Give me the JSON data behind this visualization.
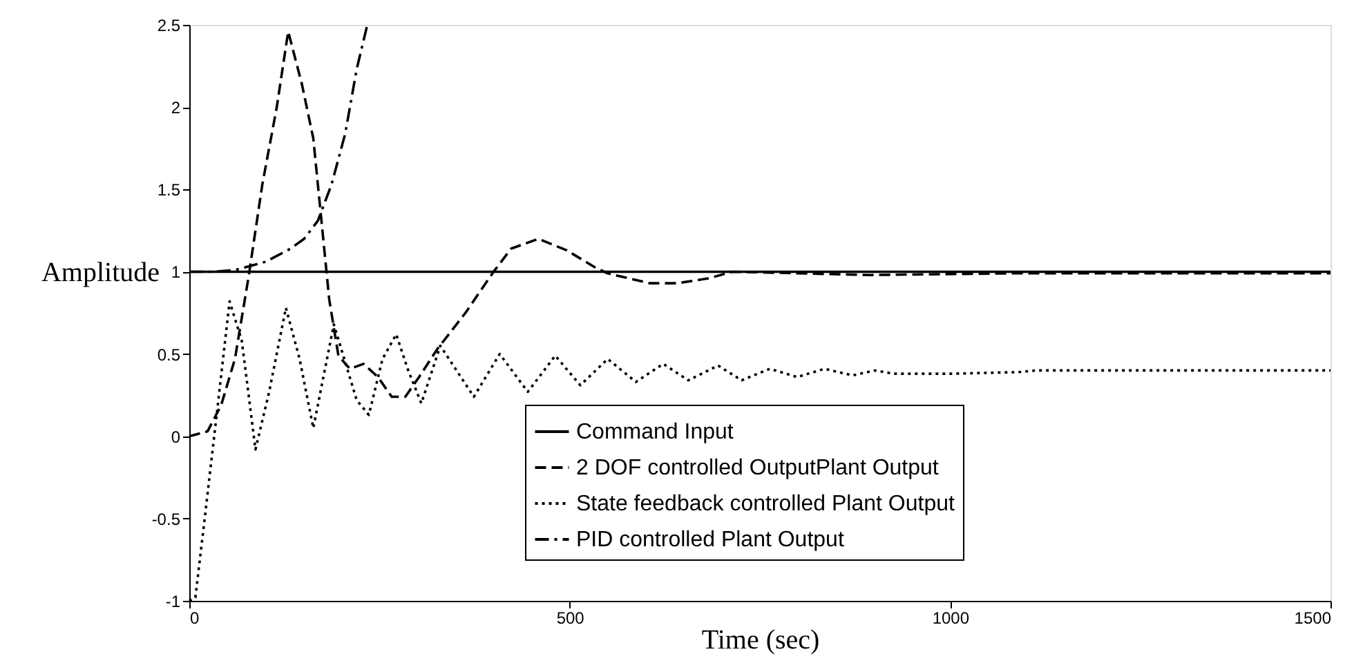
{
  "chart_data": {
    "type": "line",
    "xlabel": "Time (sec)",
    "ylabel": "Amplitude",
    "xlim": [
      0,
      1500
    ],
    "xticks": [
      0,
      500,
      1000,
      1500
    ],
    "ylim": [
      -1,
      2.5
    ],
    "yticks": [
      -1,
      -0.5,
      0,
      0.5,
      1,
      1.5,
      2,
      2.5
    ],
    "grid": false,
    "legend": "bottom",
    "marker": "none",
    "series": [
      {
        "name": "Command Input",
        "color": "#000000",
        "line_style": "solid",
        "x": [
          0,
          1500
        ],
        "values": [
          1,
          1
        ]
      },
      {
        "name": "2 DOF controlled OutputPlant Output",
        "color": "#000000",
        "line_style": "dashed",
        "x": [
          0,
          24,
          42,
          60,
          78,
          96,
          115,
          130,
          148,
          163,
          175,
          184,
          196,
          211,
          229,
          248,
          266,
          284,
          302,
          326,
          363,
          400,
          423,
          459,
          496,
          532,
          550,
          605,
          641,
          683,
          714,
          895,
          1077,
          1500
        ],
        "values": [
          0,
          0.03,
          0.19,
          0.47,
          0.97,
          1.53,
          2.0,
          2.46,
          2.14,
          1.81,
          1.25,
          0.83,
          0.49,
          0.41,
          0.44,
          0.36,
          0.24,
          0.24,
          0.36,
          0.53,
          0.75,
          1.0,
          1.14,
          1.2,
          1.13,
          1.03,
          0.99,
          0.93,
          0.93,
          0.96,
          1.0,
          0.98,
          0.99,
          0.99
        ]
      },
      {
        "name": "State feedback controlled Plant Output",
        "color": "#000000",
        "line_style": "dotted",
        "x": [
          0,
          8,
          20,
          36,
          53,
          69,
          87,
          105,
          127,
          145,
          163,
          190,
          220,
          236,
          254,
          272,
          287,
          305,
          330,
          374,
          408,
          445,
          481,
          514,
          550,
          587,
          623,
          656,
          695,
          726,
          763,
          799,
          835,
          872,
          901,
          926,
          1000,
          1090,
          1113,
          1500
        ],
        "values": [
          -1,
          -0.98,
          -0.51,
          0.13,
          0.82,
          0.58,
          -0.08,
          0.27,
          0.78,
          0.47,
          0.05,
          0.68,
          0.22,
          0.13,
          0.47,
          0.62,
          0.41,
          0.2,
          0.55,
          0.24,
          0.5,
          0.27,
          0.49,
          0.31,
          0.47,
          0.33,
          0.44,
          0.34,
          0.43,
          0.34,
          0.41,
          0.36,
          0.41,
          0.37,
          0.4,
          0.38,
          0.38,
          0.39,
          0.4,
          0.4
        ]
      },
      {
        "name": "PID controlled Plant Output",
        "color": "#000000",
        "line_style": "dashdot",
        "x": [
          0,
          30,
          60,
          100,
          133,
          151,
          169,
          187,
          205,
          220,
          234
        ],
        "values": [
          1,
          1.0,
          1.01,
          1.06,
          1.14,
          1.2,
          1.31,
          1.53,
          1.84,
          2.23,
          2.5
        ]
      }
    ]
  }
}
